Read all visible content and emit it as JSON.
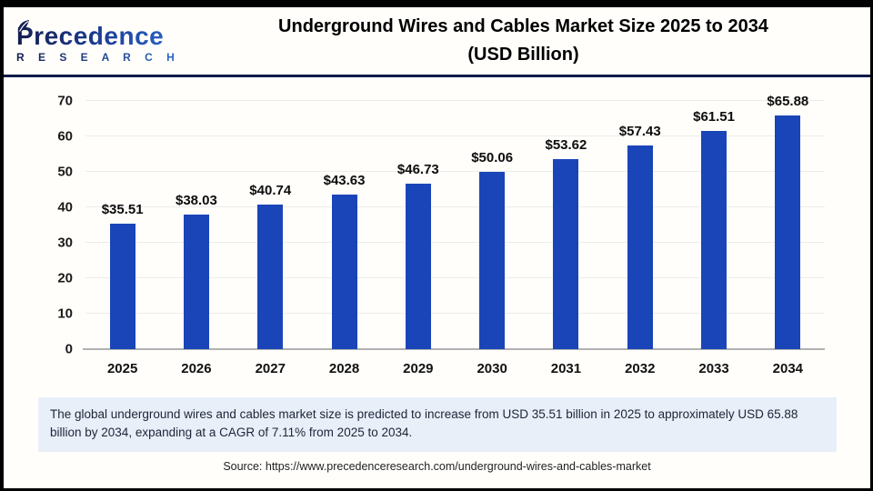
{
  "logo": {
    "brand": "Precedence",
    "sub": "R E S E A R C H"
  },
  "header": {
    "title_line1": "Underground Wires and Cables Market Size 2025 to 2034",
    "title_line2": "(USD Billion)"
  },
  "chart_data": {
    "type": "bar",
    "title": "Underground Wires and Cables Market Size 2025 to 2034 (USD Billion)",
    "categories": [
      "2025",
      "2026",
      "2027",
      "2028",
      "2029",
      "2030",
      "2031",
      "2032",
      "2033",
      "2034"
    ],
    "values": [
      35.51,
      38.03,
      40.74,
      43.63,
      46.73,
      50.06,
      53.62,
      57.43,
      61.51,
      65.88
    ],
    "value_labels": [
      "$35.51",
      "$38.03",
      "$40.74",
      "$43.63",
      "$46.73",
      "$50.06",
      "$53.62",
      "$57.43",
      "$61.51",
      "$65.88"
    ],
    "xlabel": "",
    "ylabel": "",
    "ylim": [
      0,
      70
    ],
    "yticks": [
      0,
      10,
      20,
      30,
      40,
      50,
      60,
      70
    ],
    "grid": true,
    "legend": false,
    "bar_color": "#1A45B8"
  },
  "summary": {
    "text": "The global underground wires and cables market size is predicted to increase from USD 35.51 billion in 2025 to approximately USD 65.88 billion by 2034, expanding at a CAGR of 7.11% from 2025 to 2034."
  },
  "source": {
    "text": "Source: https://www.precedenceresearch.com/underground-wires-and-cables-market"
  },
  "colors": {
    "bar": "#1A45B8",
    "divider_navy": "#0E1A4B",
    "summary_bg": "#E9EFF8",
    "gridline": "#ECECEC",
    "baseline": "#B1B1B1"
  }
}
